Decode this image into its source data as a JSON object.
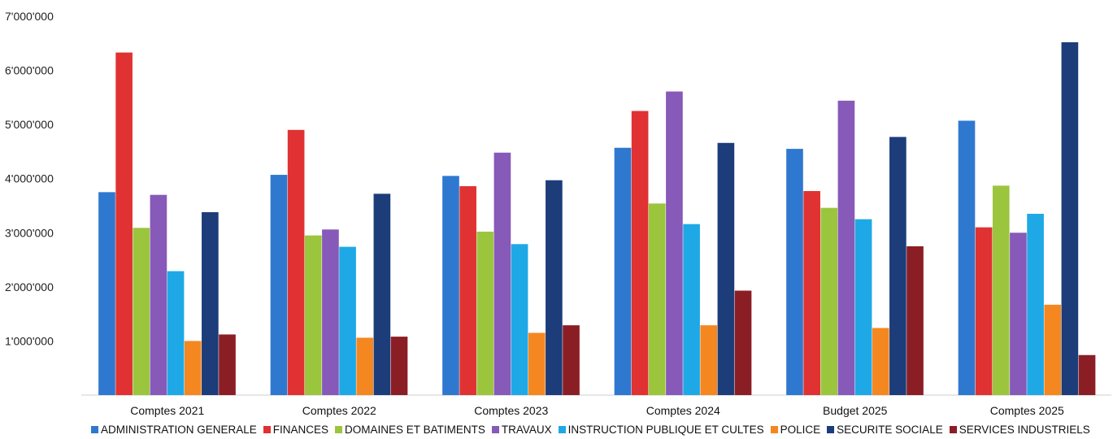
{
  "chart_data": {
    "type": "bar",
    "categories": [
      "Comptes 2021",
      "Comptes 2022",
      "Comptes 2023",
      "Comptes 2024",
      "Budget 2025",
      "Comptes 2025"
    ],
    "y_ticks": [
      "1'000'000",
      "2'000'000",
      "3'000'000",
      "4'000'000",
      "5'000'000",
      "6'000'000",
      "7'000'000"
    ],
    "ylim": [
      0,
      7000000
    ],
    "grid": false,
    "legend_position": "bottom",
    "series": [
      {
        "name": "ADMINISTRATION GENERALE",
        "color": "#2f78cf",
        "values": [
          3750000,
          4070000,
          4050000,
          4570000,
          4550000,
          5070000
        ]
      },
      {
        "name": "FINANCES",
        "color": "#e03232",
        "values": [
          6330000,
          4900000,
          3860000,
          5250000,
          3770000,
          3100000
        ]
      },
      {
        "name": "DOMAINES ET BATIMENTS",
        "color": "#9bc53d",
        "values": [
          3090000,
          2950000,
          3020000,
          3540000,
          3460000,
          3870000
        ]
      },
      {
        "name": "TRAVAUX",
        "color": "#8759b8",
        "values": [
          3700000,
          3060000,
          4480000,
          5610000,
          5440000,
          3000000
        ]
      },
      {
        "name": "INSTRUCTION PUBLIQUE ET CULTES",
        "color": "#1fa8e6",
        "values": [
          2290000,
          2740000,
          2790000,
          3160000,
          3250000,
          3350000
        ]
      },
      {
        "name": "POLICE",
        "color": "#f58720",
        "values": [
          1000000,
          1060000,
          1150000,
          1290000,
          1240000,
          1670000
        ]
      },
      {
        "name": "SECURITE SOCIALE",
        "color": "#1c3d7a",
        "values": [
          3380000,
          3720000,
          3970000,
          4660000,
          4770000,
          6520000
        ]
      },
      {
        "name": "SERVICES INDUSTRIELS",
        "color": "#8b1e24",
        "values": [
          1120000,
          1080000,
          1290000,
          1930000,
          2750000,
          740000
        ]
      }
    ]
  }
}
